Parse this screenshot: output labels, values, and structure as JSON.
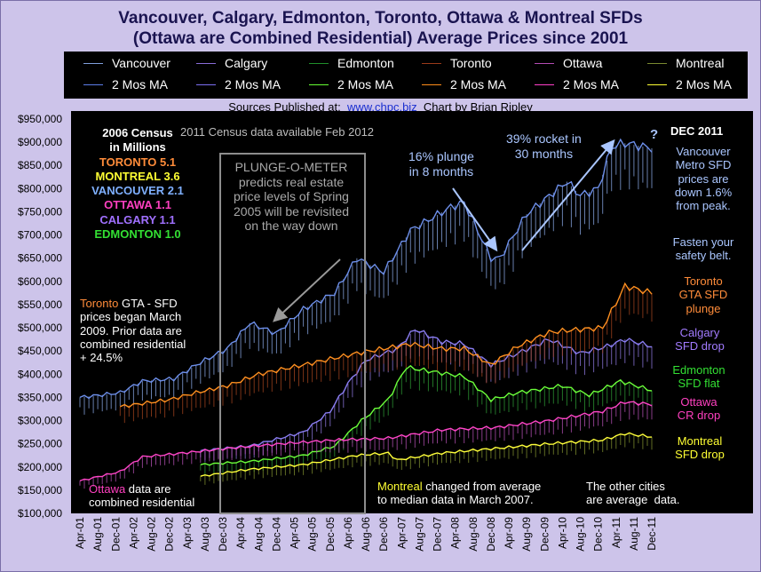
{
  "title": {
    "line1": "Vancouver, Calgary, Edmonton, Toronto, Ottawa & Montreal SFDs",
    "line2": "(Ottawa are Combined Residential) Average Prices since 2001"
  },
  "legend": {
    "row1": [
      {
        "label": "Vancouver",
        "color": "#7f9fdc"
      },
      {
        "label": "Calgary",
        "color": "#8a6cd8"
      },
      {
        "label": "Edmonton",
        "color": "#1f8f2a"
      },
      {
        "label": "Toronto",
        "color": "#9a3a1a"
      },
      {
        "label": "Ottawa",
        "color": "#b44cb4"
      },
      {
        "label": "Montreal",
        "color": "#7a8a30"
      }
    ],
    "row2": [
      {
        "label": "2 Mos MA",
        "color": "#5b7de8"
      },
      {
        "label": "2 Mos MA",
        "color": "#7b6ef0"
      },
      {
        "label": "2 Mos MA",
        "color": "#66ff33"
      },
      {
        "label": "2 Mos MA",
        "color": "#ff8c1a"
      },
      {
        "label": "2 Mos MA",
        "color": "#ff3fc8"
      },
      {
        "label": "2 Mos MA",
        "color": "#ffff33"
      }
    ]
  },
  "sources": {
    "prefix": "Sources Published  at:",
    "link": "www.chpc.biz",
    "suffix": "Chart by Brian Ripley"
  },
  "annotations": {
    "census_title": "2006 Census\nin Millions",
    "census_entries": [
      {
        "label": "TORONTO 5.1",
        "color": "#ff8c3a"
      },
      {
        "label": "MONTREAL 3.6",
        "color": "#ffff33"
      },
      {
        "label": "VANCOUVER 2.1",
        "color": "#7fb0ff"
      },
      {
        "label": "OTTAWA 1.1",
        "color": "#ff40c0"
      },
      {
        "label": "CALGARY 1.1",
        "color": "#a070ff"
      },
      {
        "label": "EDMONTON 1.0",
        "color": "#33e033"
      }
    ],
    "census2011": "2011 Census data available Feb 2012",
    "plunge_o_meter": "PLUNGE-O-METER\npredicts real estate\nprice levels of Spring\n2005 will be revisited\non the way down",
    "plunge16": "16% plunge\nin 8 months",
    "rocket39": "39% rocket in\n30 months",
    "question": "?",
    "dec2011": "DEC 2011",
    "vancouver_note": "Vancouver\nMetro SFD\nprices are\ndown 1.6%\nfrom peak.",
    "fasten": "Fasten your\nsafety belt.",
    "toronto_right": "Toronto\nGTA SFD\nplunge",
    "calgary_right": "Calgary\nSFD drop",
    "edmonton_right": "Edmonton\nSFD flat",
    "ottawa_right": "Ottawa\nCR drop",
    "montreal_right": "Montreal\nSFD drop",
    "toronto_note_city": "Toronto",
    "toronto_note_rest": " GTA - SFD\nprices began March\n2009. Prior data are\ncombined residential\n+ 24.5%",
    "ottawa_note_city": "Ottawa",
    "ottawa_note_rest": " data are\ncombined residential",
    "montreal_note_city": "Montreal",
    "montreal_note_rest": " changed from average\nto median data in March 2007.",
    "other_cities": "The other cities\nare average  data."
  },
  "chart_data": {
    "type": "line",
    "title": "Vancouver, Calgary, Edmonton, Toronto, Ottawa & Montreal SFDs (Ottawa are Combined Residential) Average Prices since 2001",
    "ylim": [
      100000,
      950000
    ],
    "yticks": [
      "$100,000",
      "$150,000",
      "$200,000",
      "$250,000",
      "$300,000",
      "$350,000",
      "$400,000",
      "$450,000",
      "$500,000",
      "$550,000",
      "$600,000",
      "$650,000",
      "$700,000",
      "$750,000",
      "$800,000",
      "$850,000",
      "$900,000",
      "$950,000"
    ],
    "x_range": [
      "2001-04",
      "2011-12"
    ],
    "xticks": [
      "Apr-01",
      "Aug-01",
      "Dec-01",
      "Apr-02",
      "Aug-02",
      "Dec-02",
      "Apr-03",
      "Aug-03",
      "Dec-03",
      "Apr-04",
      "Aug-04",
      "Dec-04",
      "Apr-05",
      "Aug-05",
      "Dec-05",
      "Apr-06",
      "Aug-06",
      "Dec-06",
      "Apr-07",
      "Aug-07",
      "Dec-07",
      "Apr-08",
      "Aug-08",
      "Dec-08",
      "Apr-09",
      "Aug-09",
      "Dec-09",
      "Apr-10",
      "Aug-10",
      "Dec-10",
      "Apr-11",
      "Aug-11",
      "Dec-11"
    ],
    "grid": false,
    "series": [
      {
        "name": "Vancouver",
        "color": "#8aa8e6",
        "ma_color": "#6d8fea",
        "points": [
          [
            "2001-04",
            350000
          ],
          [
            "2002-01",
            360000
          ],
          [
            "2002-06",
            385000
          ],
          [
            "2003-01",
            390000
          ],
          [
            "2003-06",
            420000
          ],
          [
            "2004-01",
            455000
          ],
          [
            "2004-06",
            510000
          ],
          [
            "2004-12",
            488000
          ],
          [
            "2005-06",
            540000
          ],
          [
            "2006-01",
            575000
          ],
          [
            "2006-06",
            650000
          ],
          [
            "2006-12",
            620000
          ],
          [
            "2007-06",
            710000
          ],
          [
            "2008-03",
            760000
          ],
          [
            "2008-06",
            770000
          ],
          [
            "2008-12",
            650000
          ],
          [
            "2009-02",
            650000
          ],
          [
            "2009-08",
            745000
          ],
          [
            "2010-05",
            815000
          ],
          [
            "2010-08",
            785000
          ],
          [
            "2010-12",
            800000
          ],
          [
            "2011-03",
            890000
          ],
          [
            "2011-06",
            898000
          ],
          [
            "2011-12",
            887000
          ]
        ]
      },
      {
        "name": "Calgary",
        "color": "#8f78e0",
        "ma_color": "#8a7df2",
        "points": [
          [
            "2003-07",
            235000
          ],
          [
            "2004-06",
            245000
          ],
          [
            "2005-06",
            275000
          ],
          [
            "2005-12",
            320000
          ],
          [
            "2006-04",
            380000
          ],
          [
            "2006-08",
            430000
          ],
          [
            "2007-03",
            455000
          ],
          [
            "2007-07",
            497000
          ],
          [
            "2008-01",
            470000
          ],
          [
            "2008-06",
            465000
          ],
          [
            "2008-12",
            420000
          ],
          [
            "2009-06",
            445000
          ],
          [
            "2010-01",
            475000
          ],
          [
            "2010-08",
            445000
          ],
          [
            "2011-02",
            460000
          ],
          [
            "2011-06",
            475000
          ],
          [
            "2011-12",
            460000
          ]
        ]
      },
      {
        "name": "Edmonton",
        "color": "#2e9a34",
        "ma_color": "#6cff3a",
        "points": [
          [
            "2003-07",
            205000
          ],
          [
            "2004-06",
            212000
          ],
          [
            "2005-06",
            225000
          ],
          [
            "2006-01",
            245000
          ],
          [
            "2006-07",
            300000
          ],
          [
            "2007-01",
            345000
          ],
          [
            "2007-05",
            415000
          ],
          [
            "2007-08",
            410000
          ],
          [
            "2008-06",
            395000
          ],
          [
            "2008-12",
            345000
          ],
          [
            "2009-06",
            360000
          ],
          [
            "2010-04",
            375000
          ],
          [
            "2010-10",
            355000
          ],
          [
            "2011-05",
            385000
          ],
          [
            "2011-12",
            365000
          ]
        ]
      },
      {
        "name": "Toronto",
        "color": "#a3441f",
        "ma_color": "#ff9020",
        "points": [
          [
            "2002-01",
            330000
          ],
          [
            "2002-12",
            345000
          ],
          [
            "2003-06",
            360000
          ],
          [
            "2004-01",
            375000
          ],
          [
            "2004-08",
            400000
          ],
          [
            "2005-06",
            420000
          ],
          [
            "2006-06",
            445000
          ],
          [
            "2007-06",
            465000
          ],
          [
            "2008-01",
            455000
          ],
          [
            "2008-06",
            455000
          ],
          [
            "2008-12",
            420000
          ],
          [
            "2009-06",
            460000
          ],
          [
            "2010-01",
            490000
          ],
          [
            "2010-06",
            495000
          ],
          [
            "2011-01",
            500000
          ],
          [
            "2011-06",
            590000
          ],
          [
            "2011-12",
            575000
          ]
        ]
      },
      {
        "name": "Ottawa",
        "color": "#b551b5",
        "ma_color": "#ff45c8",
        "points": [
          [
            "2001-04",
            170000
          ],
          [
            "2002-01",
            190000
          ],
          [
            "2002-06",
            222000
          ],
          [
            "2003-01",
            228000
          ],
          [
            "2004-01",
            240000
          ],
          [
            "2005-01",
            250000
          ],
          [
            "2006-01",
            258000
          ],
          [
            "2007-01",
            262000
          ],
          [
            "2008-01",
            280000
          ],
          [
            "2009-01",
            285000
          ],
          [
            "2010-01",
            300000
          ],
          [
            "2011-01",
            320000
          ],
          [
            "2011-06",
            340000
          ],
          [
            "2011-12",
            335000
          ]
        ]
      },
      {
        "name": "Montreal",
        "color": "#80902f",
        "ma_color": "#ffff3a",
        "points": [
          [
            "2003-07",
            180000
          ],
          [
            "2004-06",
            195000
          ],
          [
            "2005-06",
            205000
          ],
          [
            "2006-06",
            225000
          ],
          [
            "2007-01",
            230000
          ],
          [
            "2007-03",
            215000
          ],
          [
            "2008-01",
            230000
          ],
          [
            "2009-01",
            240000
          ],
          [
            "2010-01",
            250000
          ],
          [
            "2011-01",
            258000
          ],
          [
            "2011-06",
            272000
          ],
          [
            "2011-12",
            265000
          ]
        ]
      }
    ]
  }
}
